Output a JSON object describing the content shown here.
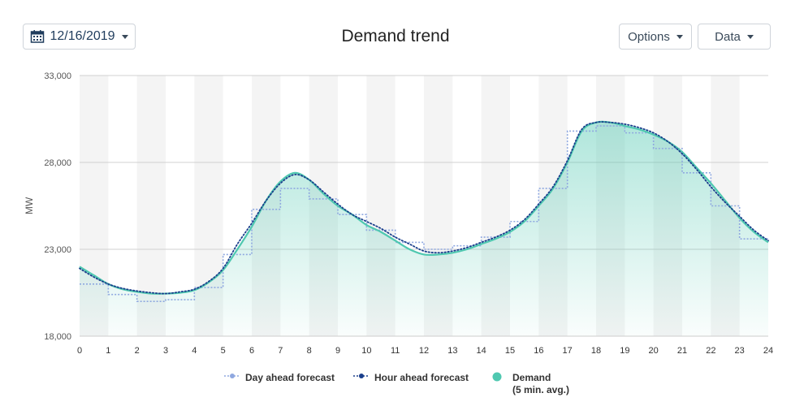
{
  "header": {
    "date_label": "12/16/2019",
    "title": "Demand trend",
    "options_label": "Options",
    "data_label": "Data"
  },
  "icons": {
    "date": "calendar-icon",
    "dropdown": "caret-down-icon"
  },
  "colors": {
    "accent": "#1f3c5c",
    "demand": "#4fc8b0",
    "hour_ahead": "#1a3f8c",
    "day_ahead": "#8fa8e0"
  },
  "chart_data": {
    "type": "area",
    "title": "Demand trend",
    "xlabel": "",
    "ylabel": "MW",
    "xlim": [
      0,
      24
    ],
    "ylim": [
      18000,
      33000
    ],
    "x_ticks": [
      "0",
      "1",
      "2",
      "3",
      "4",
      "5",
      "6",
      "7",
      "8",
      "9",
      "10",
      "11",
      "12",
      "13",
      "14",
      "15",
      "16",
      "17",
      "18",
      "19",
      "20",
      "21",
      "22",
      "23",
      "24"
    ],
    "y_ticks": [
      "18,000",
      "23,000",
      "28,000",
      "33,000"
    ],
    "grid": "horizontal",
    "legend_position": "bottom",
    "series": [
      {
        "name": "Day ahead forecast",
        "style": "step",
        "x": [
          0,
          1,
          2,
          3,
          4,
          5,
          6,
          7,
          8,
          9,
          10,
          11,
          12,
          13,
          14,
          15,
          16,
          17,
          18,
          19,
          20,
          21,
          22,
          23
        ],
        "values": [
          21000,
          20400,
          20000,
          20100,
          20800,
          22700,
          25300,
          26500,
          25900,
          25000,
          24100,
          23400,
          23000,
          23200,
          23700,
          24600,
          26500,
          29800,
          30100,
          29700,
          28800,
          27400,
          25500,
          23600
        ]
      },
      {
        "name": "Hour ahead forecast",
        "style": "dotted",
        "x": [
          0,
          0.5,
          1,
          1.5,
          2,
          2.5,
          3,
          3.5,
          4,
          4.5,
          5,
          5.5,
          6,
          6.5,
          7,
          7.5,
          8,
          8.5,
          9,
          9.5,
          10,
          10.5,
          11,
          11.5,
          12,
          12.5,
          13,
          13.5,
          14,
          14.5,
          15,
          15.5,
          16,
          16.5,
          17,
          17.5,
          18,
          18.5,
          19,
          19.5,
          20,
          20.5,
          21,
          21.5,
          22,
          22.5,
          23,
          23.5,
          24
        ],
        "values": [
          21900,
          21400,
          21000,
          20750,
          20600,
          20500,
          20450,
          20550,
          20700,
          21150,
          21900,
          23300,
          24500,
          25800,
          26800,
          27300,
          27000,
          26300,
          25600,
          25000,
          24600,
          24200,
          23700,
          23300,
          22900,
          22800,
          22900,
          23100,
          23400,
          23700,
          24100,
          24700,
          25600,
          26600,
          28100,
          29900,
          30300,
          30300,
          30200,
          30000,
          29700,
          29200,
          28500,
          27600,
          26600,
          25700,
          24900,
          24100,
          23500
        ]
      },
      {
        "name": "Demand\n(5 min. avg.)",
        "style": "area",
        "x": [
          0,
          0.5,
          1,
          1.5,
          2,
          2.5,
          3,
          3.5,
          4,
          4.5,
          5,
          5.5,
          6,
          6.5,
          7,
          7.5,
          8,
          8.5,
          9,
          9.5,
          10,
          10.5,
          11,
          11.5,
          12,
          12.5,
          13,
          13.5,
          14,
          14.5,
          15,
          15.5,
          16,
          16.5,
          17,
          17.5,
          18,
          18.5,
          19,
          19.5,
          20,
          20.5,
          21,
          21.5,
          22,
          22.5,
          23,
          23.5,
          24
        ],
        "values": [
          22000,
          21500,
          21000,
          20700,
          20550,
          20450,
          20450,
          20500,
          20650,
          21100,
          21800,
          23000,
          24300,
          25800,
          26900,
          27400,
          27000,
          26200,
          25500,
          25000,
          24400,
          24000,
          23500,
          23000,
          22700,
          22700,
          22800,
          23000,
          23300,
          23600,
          24000,
          24600,
          25500,
          26500,
          28000,
          29800,
          30300,
          30300,
          30100,
          29900,
          29600,
          29200,
          28600,
          27700,
          26800,
          25800,
          24800,
          24000,
          23400
        ]
      }
    ]
  },
  "legend": {
    "day_ahead": "Day ahead forecast",
    "hour_ahead": "Hour ahead forecast",
    "demand_line1": "Demand",
    "demand_line2": "(5 min. avg.)"
  }
}
